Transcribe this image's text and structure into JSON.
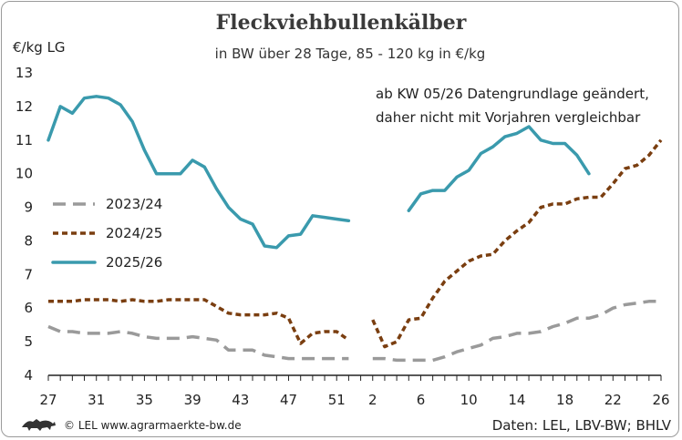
{
  "chart_data": {
    "type": "line",
    "title": "Fleckviehbullenkälber",
    "subtitle": "in BW über 28 Tage, 85 - 120 kg in €/kg",
    "ylabel": "€/kg LG",
    "ylim": [
      4,
      13
    ],
    "yticks": [
      4,
      5,
      6,
      7,
      8,
      9,
      10,
      11,
      12,
      13
    ],
    "xticks": [
      "27",
      "31",
      "35",
      "39",
      "43",
      "47",
      "51",
      "2",
      "6",
      "10",
      "14",
      "18",
      "22",
      "26"
    ],
    "x_weeks": [
      "27",
      "28",
      "29",
      "30",
      "31",
      "32",
      "33",
      "34",
      "35",
      "36",
      "37",
      "38",
      "39",
      "40",
      "41",
      "42",
      "43",
      "44",
      "45",
      "46",
      "47",
      "48",
      "49",
      "50",
      "51",
      "52",
      "1",
      "2",
      "3",
      "4",
      "5",
      "6",
      "7",
      "8",
      "9",
      "10",
      "11",
      "12",
      "13",
      "14",
      "15",
      "16",
      "17",
      "18",
      "19",
      "20",
      "21",
      "22",
      "23",
      "24",
      "25",
      "26"
    ],
    "annotation": [
      "ab KW 05/26 Datengrundlage geändert,",
      "daher nicht mit Vorjahren vergleichbar"
    ],
    "series": [
      {
        "name": "2023/24",
        "color": "#9a9a9a",
        "style": "dashed",
        "values": [
          5.45,
          5.3,
          5.3,
          5.25,
          5.25,
          5.25,
          5.3,
          5.25,
          5.15,
          5.1,
          5.1,
          5.1,
          5.15,
          5.1,
          5.05,
          4.75,
          4.75,
          4.75,
          4.6,
          4.55,
          4.5,
          4.5,
          4.5,
          4.5,
          4.5,
          4.5,
          null,
          4.5,
          4.5,
          4.45,
          4.45,
          4.45,
          4.45,
          4.55,
          4.7,
          4.8,
          4.9,
          5.1,
          5.15,
          5.25,
          5.25,
          5.3,
          5.45,
          5.55,
          5.7,
          5.7,
          5.8,
          6.0,
          6.1,
          6.15,
          6.2,
          6.2
        ]
      },
      {
        "name": "2024/25",
        "color": "#7a3e10",
        "style": "dotted",
        "values": [
          6.2,
          6.2,
          6.2,
          6.25,
          6.25,
          6.25,
          6.2,
          6.25,
          6.2,
          6.2,
          6.25,
          6.25,
          6.25,
          6.25,
          6.05,
          5.85,
          5.8,
          5.8,
          5.8,
          5.85,
          5.7,
          4.95,
          5.25,
          5.3,
          5.3,
          5.05,
          null,
          5.65,
          4.85,
          5.0,
          5.65,
          5.7,
          6.3,
          6.8,
          7.1,
          7.4,
          7.55,
          7.6,
          8.0,
          8.3,
          8.55,
          9.0,
          9.1,
          9.1,
          9.25,
          9.3,
          9.3,
          9.7,
          10.15,
          10.25,
          10.55,
          11.0
        ]
      },
      {
        "name": "2025/26",
        "color": "#3a9aad",
        "style": "solid",
        "values": [
          11.0,
          12.0,
          11.8,
          12.25,
          12.3,
          12.25,
          12.05,
          11.55,
          10.7,
          10.0,
          10.0,
          10.0,
          10.4,
          10.2,
          9.55,
          9.0,
          8.65,
          8.5,
          7.85,
          7.8,
          8.15,
          8.2,
          8.75,
          8.7,
          8.65,
          8.6,
          null,
          null,
          null,
          null,
          8.9,
          9.4,
          9.5,
          9.5,
          9.9,
          10.1,
          10.6,
          10.8,
          11.1,
          11.2,
          11.4,
          11.0,
          10.9,
          10.9,
          10.55,
          10.0,
          null,
          null,
          null,
          null,
          null,
          null
        ]
      }
    ]
  },
  "footer": {
    "copyright": "© LEL www.agrarmaerkte-bw.de",
    "source": "Daten: LEL, LBV-BW; BHLV"
  }
}
